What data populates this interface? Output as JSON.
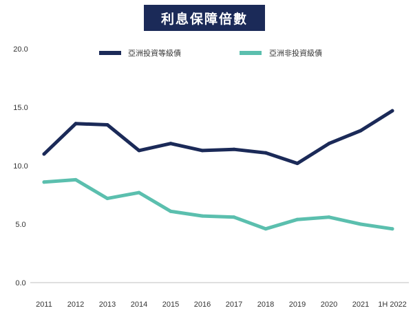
{
  "chart_data": {
    "type": "line",
    "title": "利息保障倍數",
    "xlabel": "",
    "ylabel": "",
    "categories": [
      "2011",
      "2012",
      "2013",
      "2014",
      "2015",
      "2016",
      "2017",
      "2018",
      "2019",
      "2020",
      "2021",
      "1H 2022"
    ],
    "ylim": [
      0,
      20
    ],
    "yticks": [
      "0.0",
      "5.0",
      "10.0",
      "15.0",
      "20.0"
    ],
    "grid": false,
    "legend_position": "top",
    "series": [
      {
        "name": "亞洲投資等級債",
        "color": "#1b2a58",
        "values": [
          11.0,
          13.6,
          13.5,
          11.3,
          11.9,
          11.3,
          11.4,
          11.1,
          10.2,
          11.9,
          13.0,
          14.7
        ]
      },
      {
        "name": "亞洲非投資級債",
        "color": "#5bbfae",
        "values": [
          8.6,
          8.8,
          7.2,
          7.7,
          6.1,
          5.7,
          5.6,
          4.6,
          5.4,
          5.6,
          5.0,
          4.6
        ]
      }
    ]
  }
}
